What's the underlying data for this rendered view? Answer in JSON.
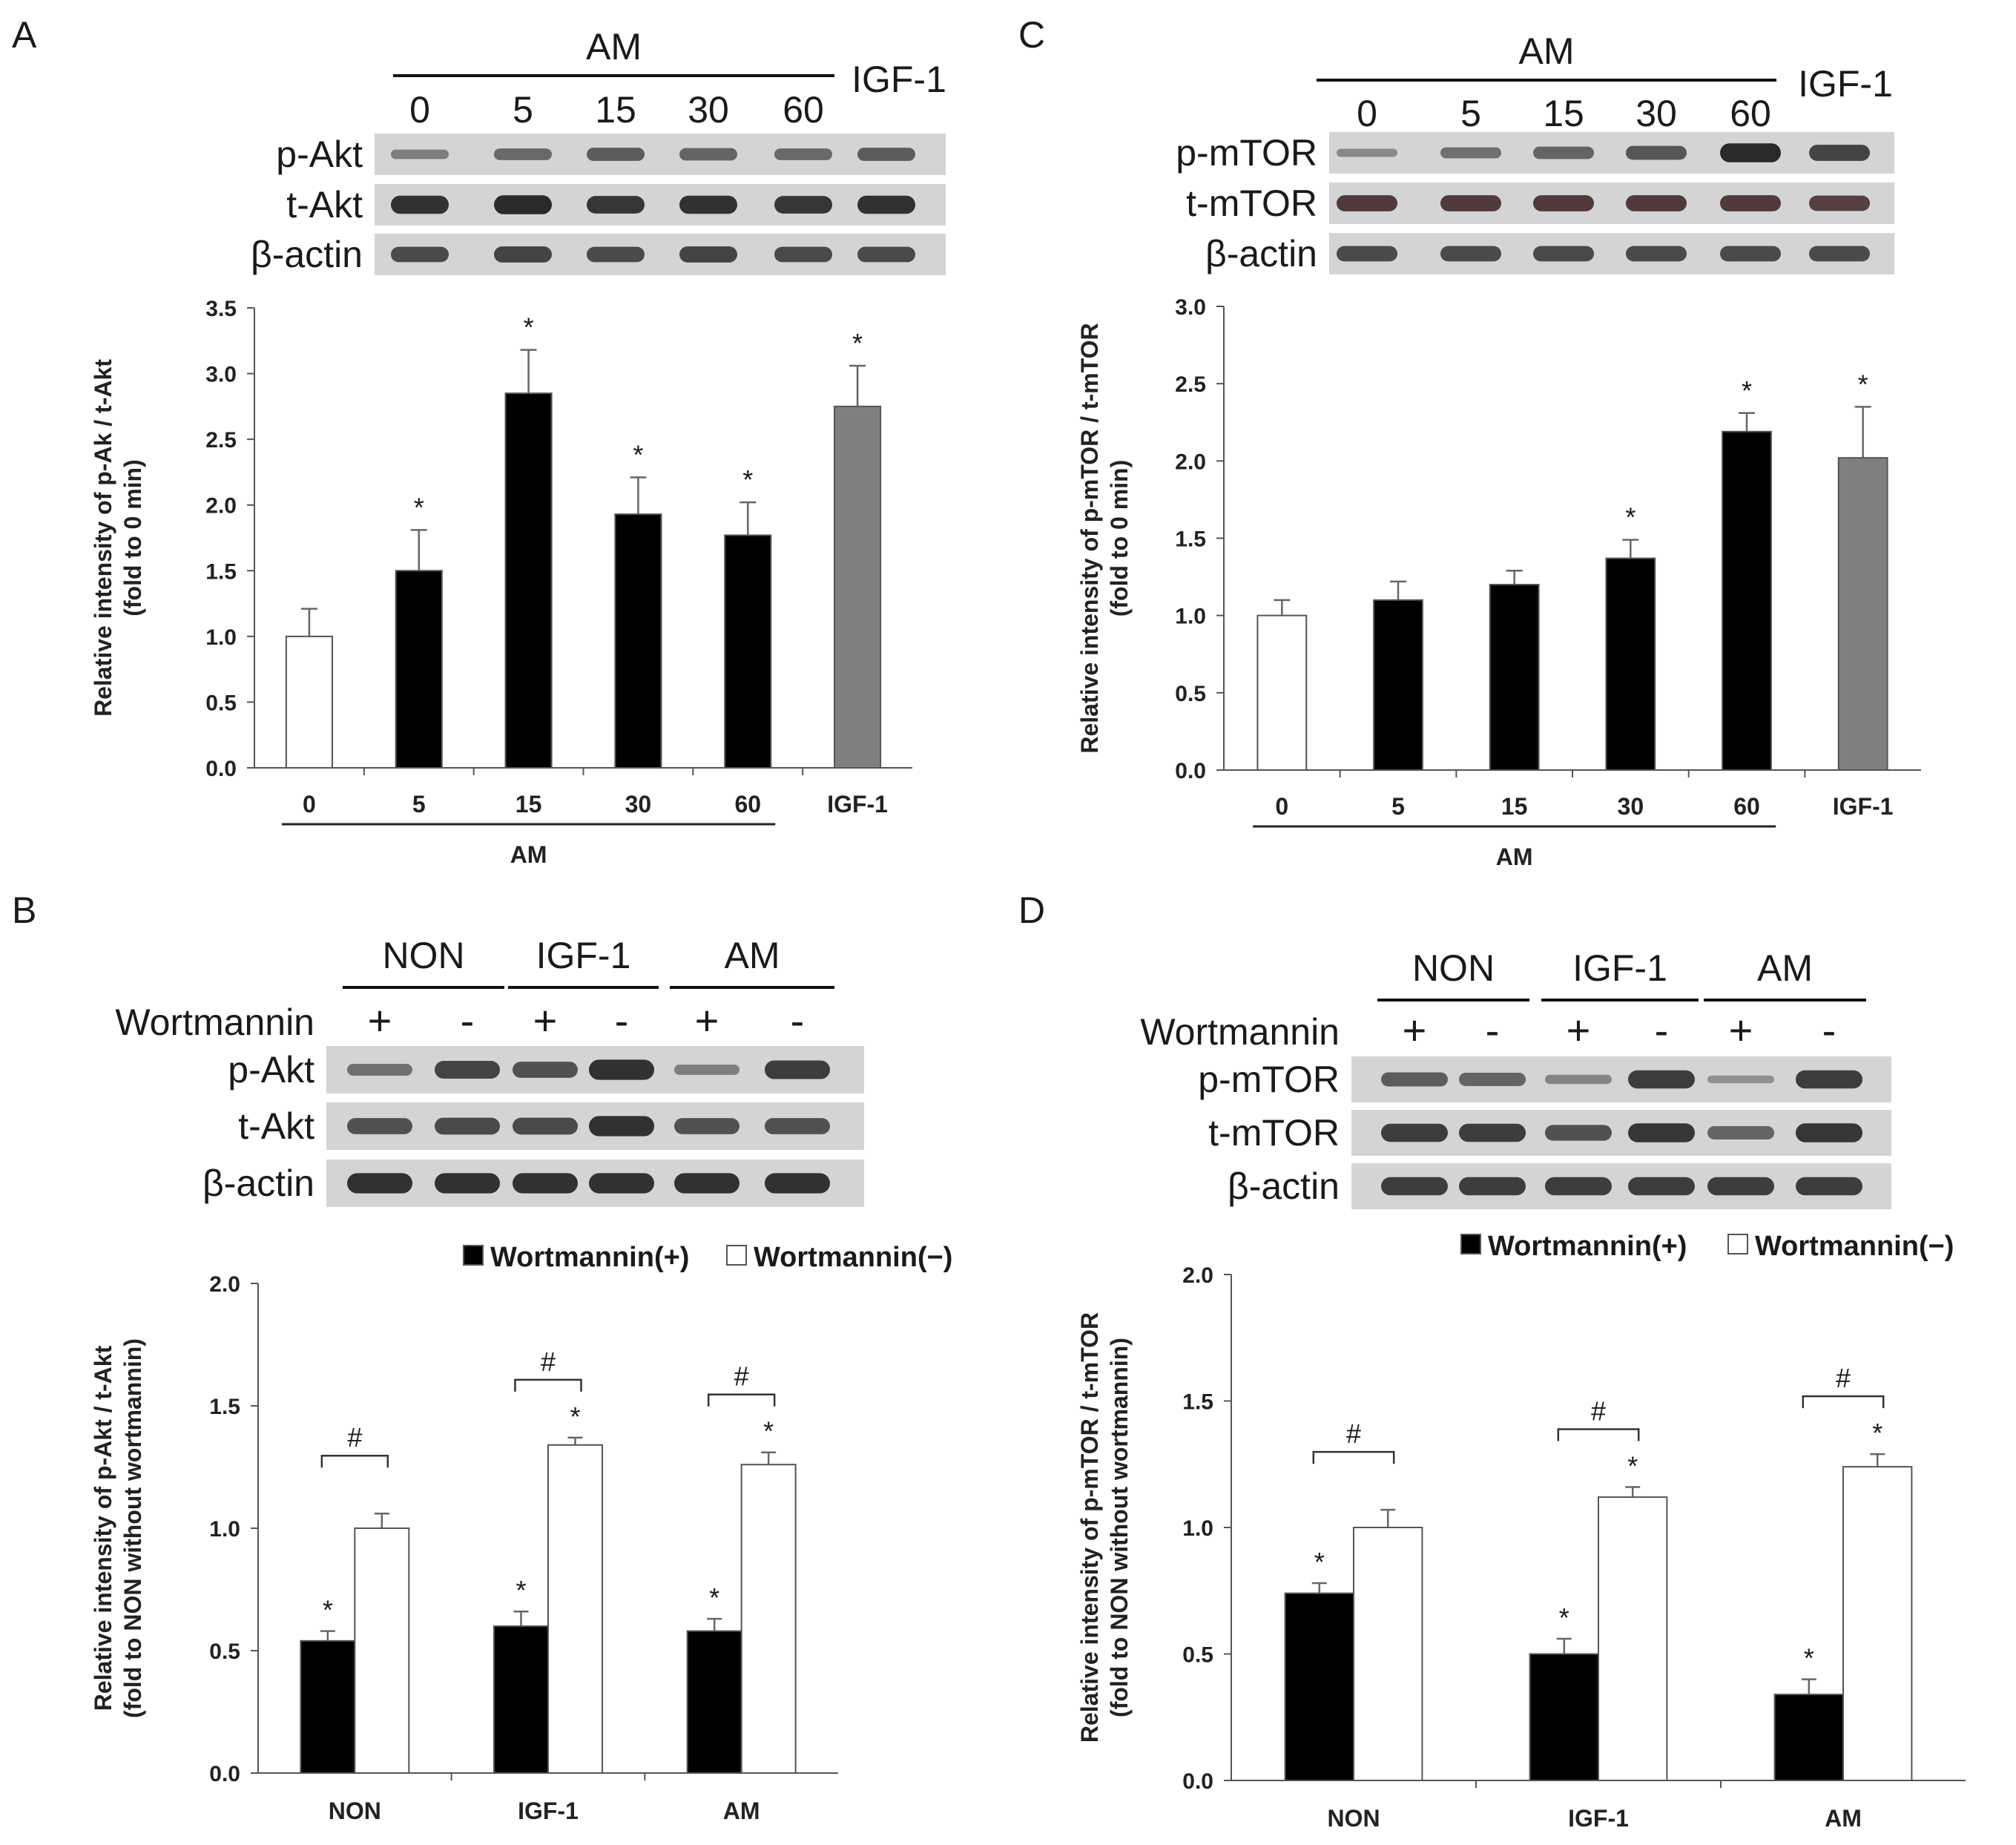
{
  "colors": {
    "black_bar": "#000000",
    "white_bar": "#ffffff",
    "gray_bar": "#7f7f7f",
    "bar_edge": "#555555",
    "blot_bg": "#d4d4d4",
    "band": "#2a2a2a",
    "band_red": "#3a1e1e"
  },
  "panels": {
    "A": {
      "letter": "A",
      "blot": {
        "group_label": "AM",
        "extra_label": "IGF-1",
        "lanes": [
          "0",
          "5",
          "15",
          "30",
          "60"
        ],
        "rows": [
          {
            "label": "p-Akt",
            "intensity": [
              0.35,
              0.5,
              0.6,
              0.55,
              0.5,
              0.6
            ],
            "tint": "dark"
          },
          {
            "label": "t-Akt",
            "intensity": [
              0.95,
              1.0,
              0.9,
              0.95,
              0.9,
              0.95
            ],
            "tint": "dark"
          },
          {
            "label": "β-actin",
            "intensity": [
              0.75,
              0.8,
              0.75,
              0.8,
              0.75,
              0.75
            ],
            "tint": "dark"
          }
        ]
      },
      "chart_data": {
        "type": "bar",
        "ylabel_line1": "Relative intensity of p-Ak / t-Akt",
        "ylabel_line2": "(fold to 0 min)",
        "ylim": [
          0,
          3.5
        ],
        "yticks": [
          "0.0",
          "0.5",
          "1.0",
          "1.5",
          "2.0",
          "2.5",
          "3.0",
          "3.5"
        ],
        "categories": [
          "0",
          "5",
          "15",
          "30",
          "60",
          "IGF-1"
        ],
        "values": [
          1.0,
          1.5,
          2.85,
          1.93,
          1.77,
          2.75
        ],
        "errors": [
          0.21,
          0.31,
          0.33,
          0.28,
          0.25,
          0.31
        ],
        "fills": [
          "white",
          "black",
          "black",
          "black",
          "black",
          "gray"
        ],
        "marks": [
          "",
          "*",
          "*",
          "*",
          "*",
          "*"
        ],
        "group_label": "AM"
      }
    },
    "C": {
      "letter": "C",
      "blot": {
        "group_label": "AM",
        "extra_label": "IGF-1",
        "lanes": [
          "0",
          "5",
          "15",
          "30",
          "60"
        ],
        "rows": [
          {
            "label": "p-mTOR",
            "intensity": [
              0.25,
              0.45,
              0.55,
              0.65,
              1.0,
              0.8
            ],
            "tint": "dark"
          },
          {
            "label": "t-mTOR",
            "intensity": [
              0.8,
              0.8,
              0.8,
              0.8,
              0.8,
              0.75
            ],
            "tint": "red"
          },
          {
            "label": "β-actin",
            "intensity": [
              0.75,
              0.75,
              0.75,
              0.75,
              0.75,
              0.75
            ],
            "tint": "dark"
          }
        ]
      },
      "chart_data": {
        "type": "bar",
        "ylabel_line1": "Relative intensity of p-mTOR / t-mTOR",
        "ylabel_line2": "(fold to 0 min)",
        "ylim": [
          0,
          3.0
        ],
        "yticks": [
          "0.0",
          "0.5",
          "1.0",
          "1.5",
          "2.0",
          "2.5",
          "3.0"
        ],
        "categories": [
          "0",
          "5",
          "15",
          "30",
          "60",
          "IGF-1"
        ],
        "values": [
          1.0,
          1.1,
          1.2,
          1.37,
          2.19,
          2.02
        ],
        "errors": [
          0.1,
          0.12,
          0.09,
          0.12,
          0.12,
          0.33
        ],
        "fills": [
          "white",
          "black",
          "black",
          "black",
          "black",
          "gray"
        ],
        "marks": [
          "",
          "",
          "",
          "*",
          "*",
          "*"
        ],
        "group_label": "AM"
      }
    },
    "B": {
      "letter": "B",
      "blot": {
        "groups": [
          "NON",
          "IGF-1",
          "AM"
        ],
        "treatment_label": "Wortmannin",
        "signs": [
          "+",
          "-",
          "+",
          "-",
          "+",
          "-"
        ],
        "rows": [
          {
            "label": "p-Akt",
            "intensity": [
              0.45,
              0.8,
              0.7,
              0.95,
              0.35,
              0.85
            ],
            "tint": "dark"
          },
          {
            "label": "t-Akt",
            "intensity": [
              0.7,
              0.75,
              0.75,
              0.95,
              0.7,
              0.7
            ],
            "tint": "dark"
          },
          {
            "label": "β-actin",
            "intensity": [
              0.95,
              0.95,
              0.95,
              0.95,
              0.95,
              0.95
            ],
            "tint": "dark"
          }
        ]
      },
      "chart_data": {
        "type": "bar",
        "ylabel_line1": "Relative intensity of p-Akt / t-Akt",
        "ylabel_line2": "(fold to NON without wortmannin)",
        "ylim": [
          0,
          2.0
        ],
        "yticks": [
          "0.0",
          "0.5",
          "1.0",
          "1.5",
          "2.0"
        ],
        "categories": [
          "NON",
          "IGF-1",
          "AM"
        ],
        "legend": [
          "Wortmannin(+)",
          "Wortmannin(−)"
        ],
        "series": [
          {
            "name": "Wortmannin(+)",
            "values": [
              0.54,
              0.6,
              0.58
            ],
            "errors": [
              0.04,
              0.06,
              0.05
            ],
            "marks": [
              "*",
              "*",
              "*"
            ]
          },
          {
            "name": "Wortmannin(−)",
            "values": [
              1.0,
              1.34,
              1.26
            ],
            "errors": [
              0.06,
              0.03,
              0.05
            ],
            "marks": [
              "",
              "*",
              "*"
            ]
          }
        ],
        "bracket_mark": "#"
      }
    },
    "D": {
      "letter": "D",
      "blot": {
        "groups": [
          "NON",
          "IGF-1",
          "AM"
        ],
        "treatment_label": "Wortmannin",
        "signs": [
          "+",
          "-",
          "+",
          "-",
          "+",
          "-"
        ],
        "rows": [
          {
            "label": "p-mTOR",
            "intensity": [
              0.6,
              0.55,
              0.3,
              0.85,
              0.2,
              0.85
            ],
            "tint": "dark"
          },
          {
            "label": "t-mTOR",
            "intensity": [
              0.85,
              0.85,
              0.7,
              0.9,
              0.55,
              0.9
            ],
            "tint": "dark"
          },
          {
            "label": "β-actin",
            "intensity": [
              0.85,
              0.85,
              0.85,
              0.85,
              0.85,
              0.85
            ],
            "tint": "dark"
          }
        ]
      },
      "chart_data": {
        "type": "bar",
        "ylabel_line1": "Relative intensity of p-mTOR / t-mTOR",
        "ylabel_line2": "(fold to NON without wortmannin)",
        "ylim": [
          0,
          2.0
        ],
        "yticks": [
          "0.0",
          "0.5",
          "1.0",
          "1.5",
          "2.0"
        ],
        "categories": [
          "NON",
          "IGF-1",
          "AM"
        ],
        "legend": [
          "Wortmannin(+)",
          "Wortmannin(−)"
        ],
        "series": [
          {
            "name": "Wortmannin(+)",
            "values": [
              0.74,
              0.5,
              0.34
            ],
            "errors": [
              0.04,
              0.06,
              0.06
            ],
            "marks": [
              "*",
              "*",
              "*"
            ]
          },
          {
            "name": "Wortmannin(−)",
            "values": [
              1.0,
              1.12,
              1.24
            ],
            "errors": [
              0.07,
              0.04,
              0.05
            ],
            "marks": [
              "",
              "*",
              "*"
            ]
          }
        ],
        "bracket_mark": "#"
      }
    }
  }
}
